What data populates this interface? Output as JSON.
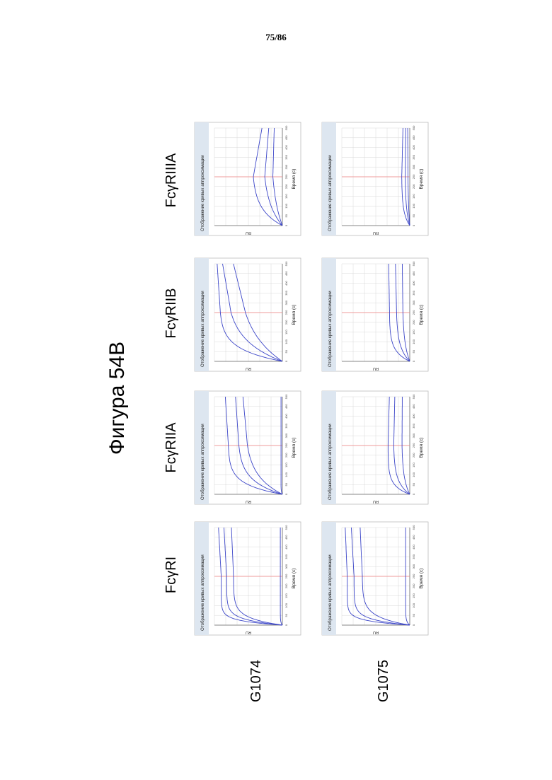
{
  "page_number": "75/86",
  "figure_title": "Фигура 54B",
  "row_labels": [
    "G1074",
    "G1075"
  ],
  "column_labels": [
    "FcγRI",
    "FcγRIIA",
    "FcγRIIB",
    "FcγRIIIA"
  ],
  "panel_title": "Отображение кривых аппроксимации",
  "x_axis_label": "Время (с)",
  "y_axis_label": "RU",
  "colors": {
    "curve": "#3b45c8",
    "marker_line": "#f08080",
    "grid": "#d8d8d8",
    "panel_header": "#dde6f0"
  },
  "chart_data": [
    {
      "type": "line",
      "row": "G1074",
      "column": "FcγRI",
      "curves": [
        {
          "plateau": 0.9,
          "rate": 12,
          "end": 0.94
        },
        {
          "plateau": 0.82,
          "rate": 9,
          "end": 0.86
        },
        {
          "plateau": 0.72,
          "rate": 7,
          "end": 0.75
        },
        {
          "plateau": 0.03,
          "rate": 20,
          "end": 0.03
        }
      ]
    },
    {
      "type": "line",
      "row": "G1074",
      "column": "FcγRIIA",
      "curves": [
        {
          "plateau": 0.8,
          "rate": 5,
          "end": 0.84
        },
        {
          "plateau": 0.66,
          "rate": 3.5,
          "end": 0.69
        },
        {
          "plateau": 0.56,
          "rate": 2.5,
          "end": 0.58
        },
        {
          "plateau": 0.02,
          "rate": 20,
          "end": 0.02
        }
      ]
    },
    {
      "type": "line",
      "row": "G1074",
      "column": "FcγRIIB",
      "curves": [
        {
          "plateau": 0.93,
          "rate": 4,
          "end": 0.96
        },
        {
          "plateau": 0.85,
          "rate": 2.2,
          "end": 0.88
        },
        {
          "plateau": 0.7,
          "rate": 1.5,
          "end": 0.72
        }
      ]
    },
    {
      "type": "line",
      "row": "G1074",
      "column": "FcγRIIIA",
      "curves": [
        {
          "plateau": 0.45,
          "rate": 3,
          "end": 0.3
        },
        {
          "plateau": 0.3,
          "rate": 2,
          "end": 0.2
        },
        {
          "plateau": 0.18,
          "rate": 1.5,
          "end": 0.12
        }
      ]
    },
    {
      "type": "line",
      "row": "G1075",
      "column": "FcγRI",
      "curves": [
        {
          "plateau": 0.92,
          "rate": 12,
          "end": 0.95
        },
        {
          "plateau": 0.82,
          "rate": 9,
          "end": 0.86
        },
        {
          "plateau": 0.7,
          "rate": 6,
          "end": 0.73
        },
        {
          "plateau": 0.06,
          "rate": 15,
          "end": 0.06
        }
      ]
    },
    {
      "type": "line",
      "row": "G1075",
      "column": "FcγRIIA",
      "curves": [
        {
          "plateau": 0.32,
          "rate": 6,
          "end": 0.3
        },
        {
          "plateau": 0.24,
          "rate": 4,
          "end": 0.22
        },
        {
          "plateau": 0.12,
          "rate": 3,
          "end": 0.11
        }
      ]
    },
    {
      "type": "line",
      "row": "G1075",
      "column": "FcγRIIB",
      "curves": [
        {
          "plateau": 0.3,
          "rate": 5,
          "end": 0.31
        },
        {
          "plateau": 0.2,
          "rate": 3.5,
          "end": 0.21
        },
        {
          "plateau": 0.11,
          "rate": 2.5,
          "end": 0.11
        }
      ]
    },
    {
      "type": "line",
      "row": "G1075",
      "column": "FcγRIIIA",
      "curves": [
        {
          "plateau": 0.12,
          "rate": 4,
          "end": 0.1
        },
        {
          "plateau": 0.07,
          "rate": 3,
          "end": 0.06
        },
        {
          "plateau": 0.03,
          "rate": 2,
          "end": 0.03
        }
      ]
    }
  ]
}
